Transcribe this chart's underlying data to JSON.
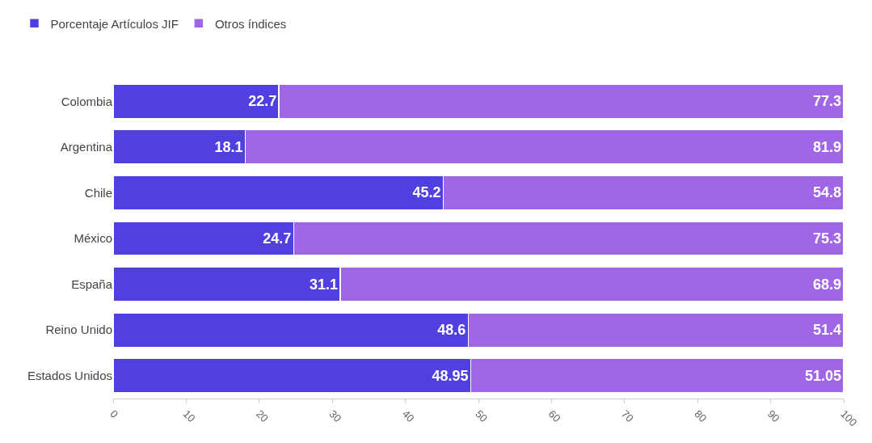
{
  "chart_data": {
    "type": "bar",
    "orientation": "horizontal",
    "stacked": true,
    "categories": [
      "Colombia",
      "Argentina",
      "Chile",
      "México",
      "España",
      "Reino Unido",
      "Estados Unidos"
    ],
    "series": [
      {
        "name": "Porcentaje Artículos JIF",
        "color": "#5040e0",
        "values": [
          22.7,
          18.1,
          45.2,
          24.7,
          31.1,
          48.6,
          48.95
        ]
      },
      {
        "name": "Otros índices",
        "color": "#a066e6",
        "values": [
          77.3,
          81.9,
          54.8,
          75.3,
          68.9,
          51.4,
          51.05
        ]
      }
    ],
    "xlim": [
      0,
      100
    ],
    "xticks": [
      0,
      10,
      20,
      30,
      40,
      50,
      60,
      70,
      80,
      90,
      100
    ],
    "data_labels": true,
    "legend": "top left"
  }
}
